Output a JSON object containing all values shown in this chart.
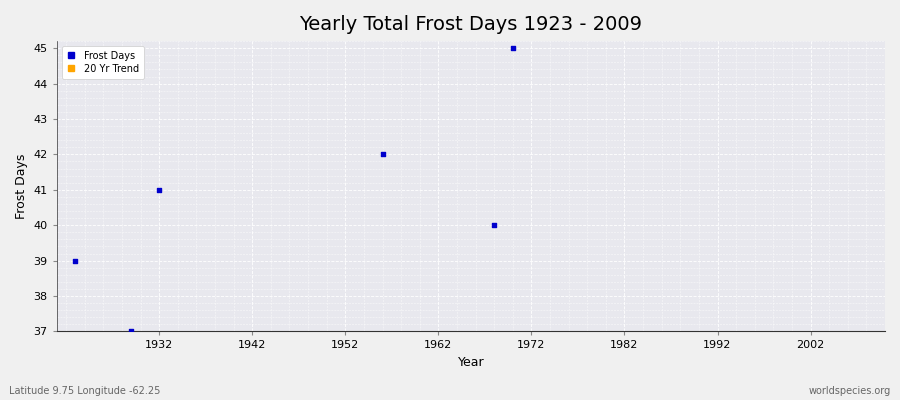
{
  "title": "Yearly Total Frost Days 1923 - 2009",
  "xlabel": "Year",
  "ylabel": "Frost Days",
  "subtitle": "Latitude 9.75 Longitude -62.25",
  "watermark": "worldspecies.org",
  "xlim": [
    1921,
    2010
  ],
  "ylim": [
    37,
    45.2
  ],
  "yticks": [
    37,
    38,
    39,
    40,
    41,
    42,
    43,
    44,
    45
  ],
  "xticks": [
    1932,
    1942,
    1952,
    1962,
    1972,
    1982,
    1992,
    2002
  ],
  "frost_days_x": [
    1923,
    1929,
    1932,
    1956,
    1968,
    1970
  ],
  "frost_days_y": [
    39,
    37,
    41,
    42,
    40,
    45
  ],
  "point_color": "#0000cc",
  "point_size": 6,
  "bg_color": "#f0f0f0",
  "plot_bg_color": "#e8e8ee",
  "grid_color": "#ffffff",
  "grid_major_color": "#ffffff",
  "legend_frost_color": "#0000cc",
  "legend_trend_color": "#ffa500",
  "title_fontsize": 14,
  "axis_label_fontsize": 9,
  "tick_fontsize": 8,
  "spine_color": "#333333"
}
